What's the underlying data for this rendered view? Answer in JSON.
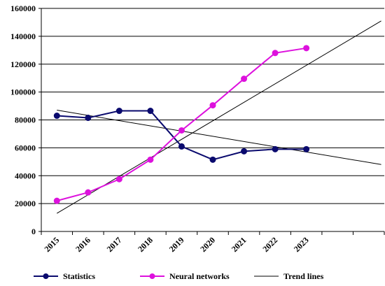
{
  "chart_data": {
    "type": "line",
    "x": [
      "2015",
      "2016",
      "2017",
      "2018",
      "2019",
      "2020",
      "2021",
      "2022",
      "2023"
    ],
    "ylim": [
      0,
      160000
    ],
    "yticks": [
      0,
      20000,
      40000,
      60000,
      80000,
      100000,
      120000,
      140000,
      160000
    ],
    "ytick_labels": [
      "0",
      "20000",
      "40000",
      "60000",
      "80000",
      "100000",
      "120000",
      "140000",
      "160000"
    ],
    "grid": "horizontal",
    "legend_position": "bottom",
    "series": [
      {
        "name": "Statistics",
        "color": "#0a0a6e",
        "values": [
          83000,
          81500,
          86500,
          86500,
          61000,
          51500,
          57500,
          59000,
          59000
        ]
      },
      {
        "name": "Neural networks",
        "color": "#dd11dd",
        "values": [
          22000,
          28000,
          37500,
          51500,
          72500,
          90500,
          109500,
          128000,
          131500
        ]
      }
    ],
    "trend_lines": {
      "name": "Trend lines",
      "color": "#000000",
      "lines": [
        {
          "x_start": 0,
          "y_start": 87000,
          "x_end": 10.4,
          "y_end": 48000
        },
        {
          "x_start": 0,
          "y_start": 13000,
          "x_end": 10.4,
          "y_end": 151000
        }
      ]
    }
  }
}
